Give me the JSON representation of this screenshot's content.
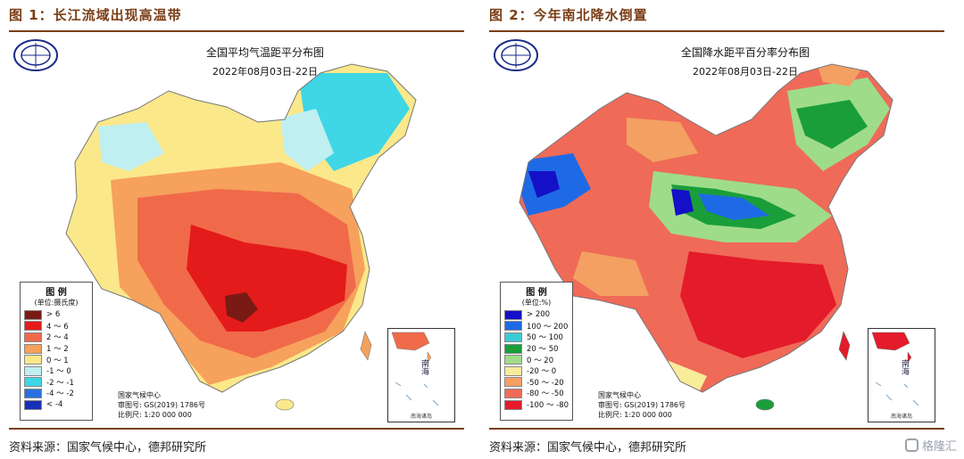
{
  "left": {
    "figure_title": "图 1：长江流域出现高温带",
    "map_title": "全国平均气温距平分布图",
    "map_date": "2022年08月03日-22日",
    "legend_title": "图 例",
    "legend_unit": "(单位:摄氏度)",
    "legend": [
      {
        "label": "> 6",
        "color": "#7a1a14"
      },
      {
        "label": "4 ～ 6",
        "color": "#e41b1b"
      },
      {
        "label": "2 ～ 4",
        "color": "#f06a4a"
      },
      {
        "label": "1 ～ 2",
        "color": "#f6a15c"
      },
      {
        "label": "0 ～ 1",
        "color": "#fbe88a"
      },
      {
        "label": "-1 ～ 0",
        "color": "#bfeff0"
      },
      {
        "label": "-2 ～ -1",
        "color": "#3fd6e6"
      },
      {
        "label": "-4 ～ -2",
        "color": "#2a6fe0"
      },
      {
        "label": "< -4",
        "color": "#1a2fb8"
      }
    ],
    "credits": [
      "国家气候中心",
      "审图号: GS(2019) 1786号",
      "比例尺: 1:20 000 000"
    ],
    "inset_label": "南海",
    "inset_caption": "南海诸岛",
    "source": "资料来源：国家气候中心，德邦研究所"
  },
  "right": {
    "figure_title": "图 2：今年南北降水倒置",
    "map_title": "全国降水距平百分率分布图",
    "map_date": "2022年08月03日-22日",
    "legend_title": "图 例",
    "legend_unit": "(单位:%)",
    "legend": [
      {
        "label": "> 200",
        "color": "#1410c8"
      },
      {
        "label": "100 ～ 200",
        "color": "#1e6ae6"
      },
      {
        "label": "50 ～ 100",
        "color": "#3cc9d6"
      },
      {
        "label": "20 ～ 50",
        "color": "#1a9e3a"
      },
      {
        "label": "0 ～ 20",
        "color": "#9fdc8a"
      },
      {
        "label": "-20 ～ 0",
        "color": "#f8ec9a"
      },
      {
        "label": "-50 ～ -20",
        "color": "#f3a062"
      },
      {
        "label": "-80 ～ -50",
        "color": "#f06a58"
      },
      {
        "label": "-100 ～ -80",
        "color": "#e41b2a"
      }
    ],
    "credits": [
      "国家气候中心",
      "审图号: GS(2019) 1786号",
      "比例尺: 1:20 000 000"
    ],
    "inset_label": "南海",
    "inset_caption": "南海诸岛",
    "source": "资料来源：国家气候中心，德邦研究所"
  },
  "watermark": "格隆汇"
}
